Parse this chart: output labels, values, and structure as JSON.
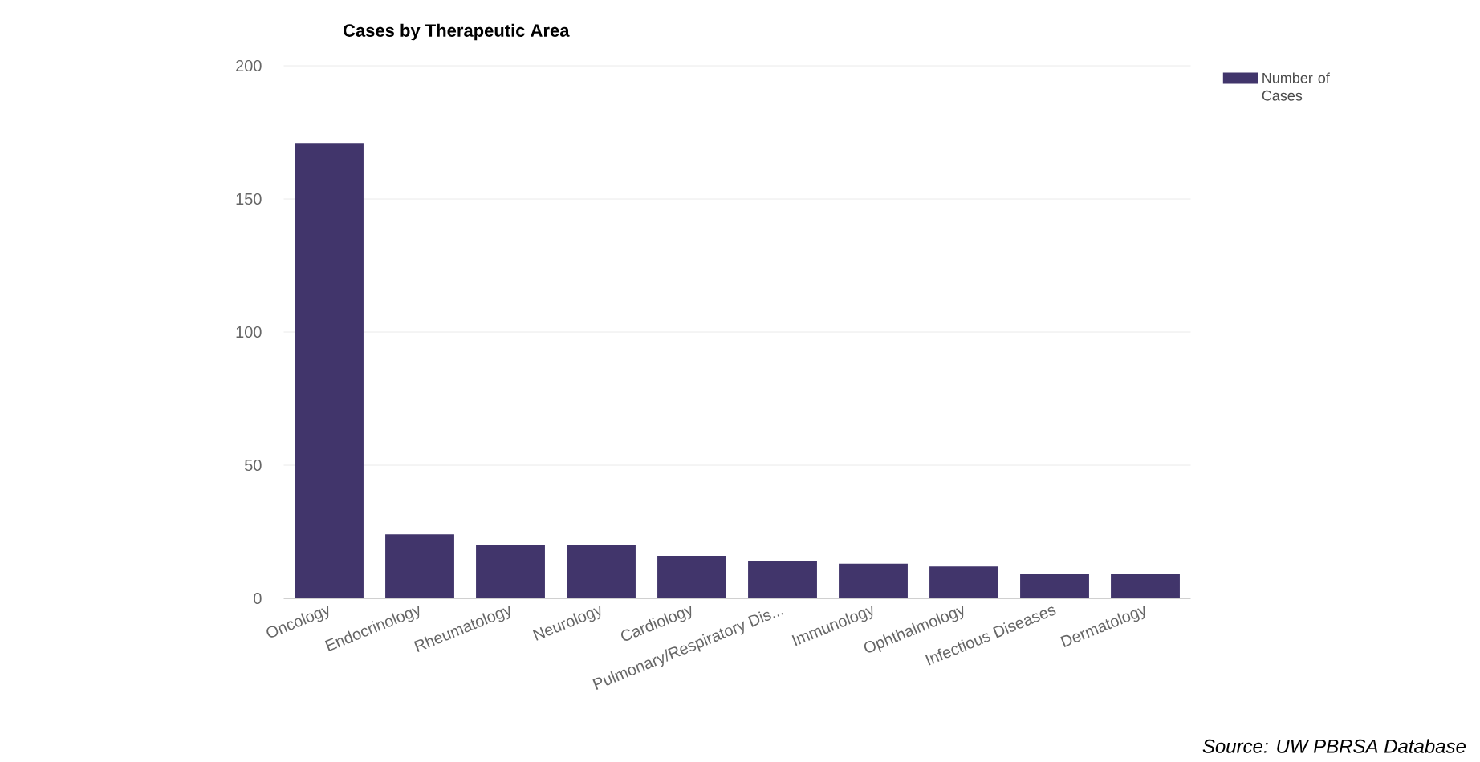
{
  "chart_data": {
    "type": "bar",
    "title": "Cases by Therapeutic Area",
    "categories": [
      "Oncology",
      "Endocrinology",
      "Rheumatology",
      "Neurology",
      "Cardiology",
      "Pulmonary/Respiratory Dis...",
      "Immunology",
      "Ophthalmology",
      "Infectious Diseases",
      "Dermatology"
    ],
    "series": [
      {
        "name": "Number of Cases",
        "color": "#41356b",
        "values": [
          171,
          24,
          20,
          20,
          16,
          14,
          13,
          12,
          9,
          9
        ]
      }
    ],
    "ylim": [
      0,
      200
    ],
    "yticks": [
      0,
      50,
      100,
      150,
      200
    ],
    "grid": "y",
    "legend": "top right",
    "annotations": [
      "Source:  UW PBRSA Database"
    ]
  }
}
